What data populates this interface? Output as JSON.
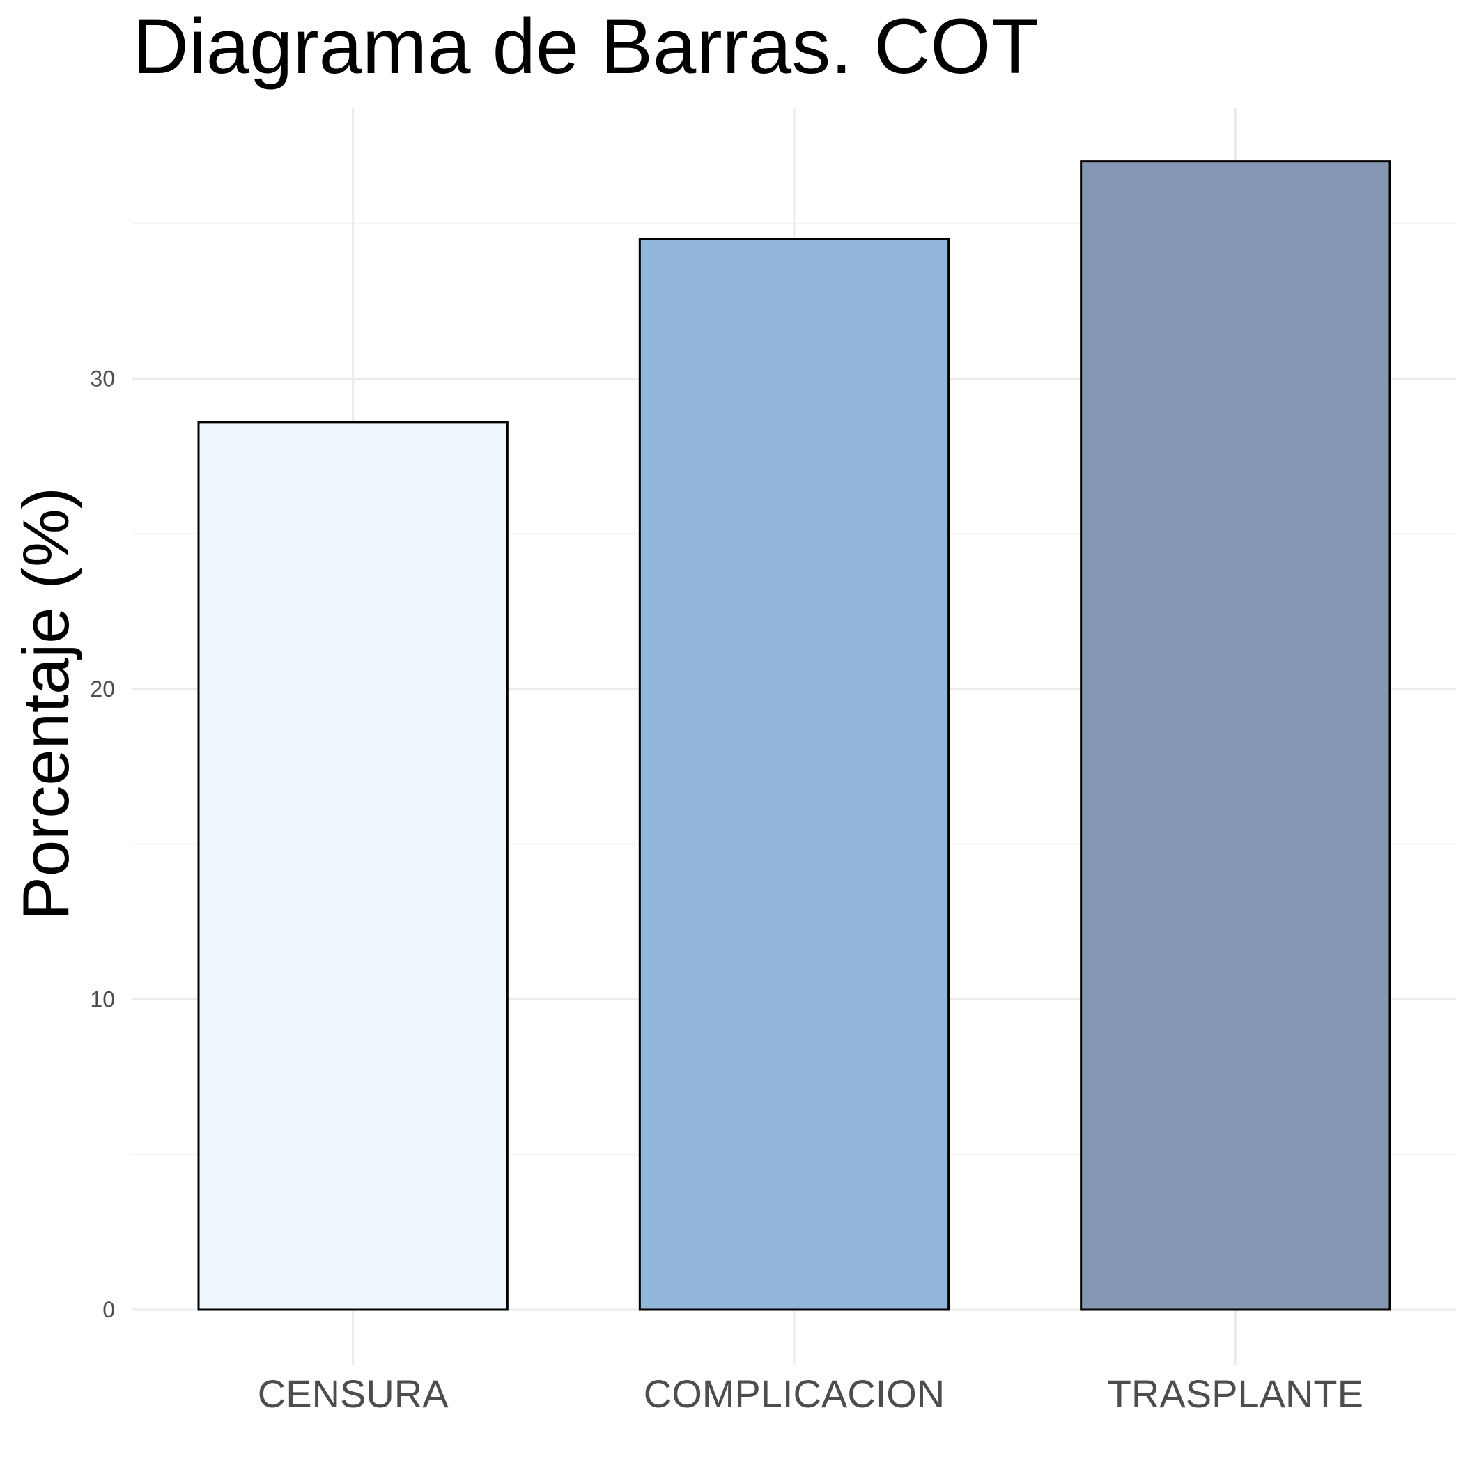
{
  "chart_data": {
    "type": "bar",
    "title": "Diagrama de Barras. COT",
    "xlabel": "",
    "ylabel": "Porcentaje (%)",
    "categories": [
      "CENSURA",
      "COMPLICACION",
      "TRASPLANTE"
    ],
    "values": [
      28.6,
      34.5,
      37.0
    ],
    "bar_colors": [
      "#eef5fc",
      "#91b6da",
      "#8697b3"
    ],
    "ylim": [
      0,
      38.2
    ],
    "y_ticks": [
      0,
      10,
      20,
      30
    ],
    "y_tick_labels": [
      "0",
      "10",
      "20",
      "30"
    ],
    "y_minor_ticks": [
      5,
      15,
      25,
      35
    ],
    "grid": true,
    "legend": "none"
  }
}
